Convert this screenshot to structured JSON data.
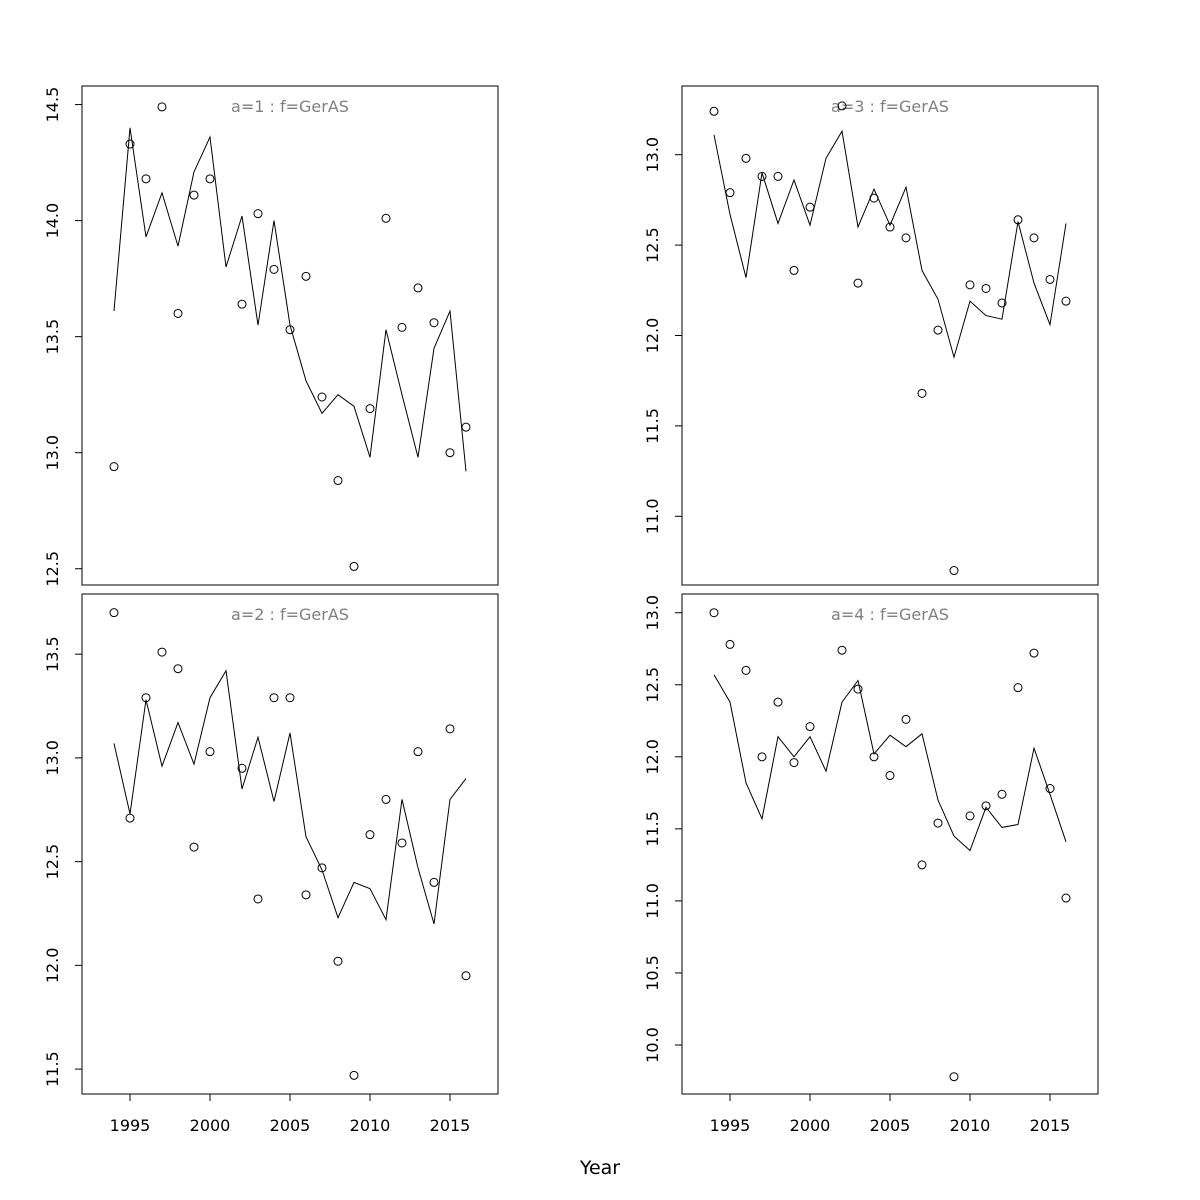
{
  "figure": {
    "xlabel": "Year"
  },
  "chart_data": [
    {
      "type": "scatter",
      "title": "a=1  :  f=GerAS",
      "xlabel": "Year",
      "ylabel": "",
      "xlim": [
        1992,
        2018
      ],
      "ylim": [
        12.43,
        14.58
      ],
      "yticks": [
        "12.5",
        "13.0",
        "13.5",
        "14.0",
        "14.5"
      ],
      "xticks": [],
      "series": [
        {
          "style": "points",
          "x": [
            1994,
            1995,
            1996,
            1997,
            1998,
            1999,
            2000,
            2001,
            2002,
            2003,
            2004,
            2005,
            2006,
            2007,
            2008,
            2009,
            2010,
            2011,
            2012,
            2013,
            2014,
            2015,
            2016
          ],
          "y": [
            12.94,
            14.33,
            14.18,
            14.49,
            13.6,
            14.11,
            14.18,
            null,
            13.64,
            14.03,
            13.79,
            13.53,
            13.76,
            13.24,
            12.88,
            12.51,
            13.19,
            14.01,
            13.54,
            13.71,
            13.56,
            13.0,
            13.11
          ]
        },
        {
          "style": "line",
          "x": [
            1994,
            1995,
            1996,
            1997,
            1998,
            1999,
            2000,
            2001,
            2002,
            2003,
            2004,
            2005,
            2006,
            2007,
            2008,
            2009,
            2010,
            2011,
            2012,
            2013,
            2014,
            2015,
            2016
          ],
          "y": [
            13.61,
            14.4,
            13.93,
            14.12,
            13.89,
            14.21,
            14.36,
            13.8,
            14.02,
            13.55,
            14.0,
            13.55,
            13.31,
            13.17,
            13.25,
            13.2,
            12.98,
            13.53,
            13.25,
            12.98,
            13.45,
            13.61,
            12.92
          ]
        }
      ]
    },
    {
      "type": "scatter",
      "title": "a=2  :  f=GerAS",
      "xlabel": "Year",
      "ylabel": "",
      "xlim": [
        1992,
        2018
      ],
      "ylim": [
        11.38,
        13.79
      ],
      "yticks": [
        "11.5",
        "12.0",
        "12.5",
        "13.0",
        "13.5"
      ],
      "xticks": [
        "1995",
        "2000",
        "2005",
        "2010",
        "2015"
      ],
      "series": [
        {
          "style": "points",
          "x": [
            1994,
            1995,
            1996,
            1997,
            1998,
            1999,
            2000,
            2001,
            2002,
            2003,
            2004,
            2005,
            2006,
            2007,
            2008,
            2009,
            2010,
            2011,
            2012,
            2013,
            2014,
            2015,
            2016
          ],
          "y": [
            13.7,
            12.71,
            13.29,
            13.51,
            13.43,
            12.57,
            13.03,
            null,
            12.95,
            12.32,
            13.29,
            13.29,
            12.34,
            12.47,
            12.02,
            11.47,
            12.63,
            12.8,
            12.59,
            13.03,
            12.4,
            13.14,
            11.95
          ]
        },
        {
          "style": "line",
          "x": [
            1994,
            1995,
            1996,
            1997,
            1998,
            1999,
            2000,
            2001,
            2002,
            2003,
            2004,
            2005,
            2006,
            2007,
            2008,
            2009,
            2010,
            2011,
            2012,
            2013,
            2014,
            2015,
            2016
          ],
          "y": [
            13.07,
            12.73,
            13.28,
            12.96,
            13.17,
            12.97,
            13.29,
            13.42,
            12.85,
            13.1,
            12.79,
            13.12,
            12.62,
            12.46,
            12.23,
            12.4,
            12.37,
            12.22,
            12.8,
            12.47,
            12.2,
            12.8,
            12.9
          ]
        }
      ]
    },
    {
      "type": "scatter",
      "title": "a=3  :  f=GerAS",
      "xlabel": "Year",
      "ylabel": "",
      "xlim": [
        1992,
        2018
      ],
      "ylim": [
        10.62,
        13.38
      ],
      "yticks": [
        "11.0",
        "11.5",
        "12.0",
        "12.5",
        "13.0"
      ],
      "xticks": [],
      "series": [
        {
          "style": "points",
          "x": [
            1994,
            1995,
            1996,
            1997,
            1998,
            1999,
            2000,
            2001,
            2002,
            2003,
            2004,
            2005,
            2006,
            2007,
            2008,
            2009,
            2010,
            2011,
            2012,
            2013,
            2014,
            2015,
            2016
          ],
          "y": [
            13.24,
            12.79,
            12.98,
            12.88,
            12.88,
            12.36,
            12.71,
            null,
            13.27,
            12.29,
            12.76,
            12.6,
            12.54,
            11.68,
            12.03,
            10.7,
            12.28,
            12.26,
            12.18,
            12.64,
            12.54,
            12.31,
            12.19
          ]
        },
        {
          "style": "line",
          "x": [
            1994,
            1995,
            1996,
            1997,
            1998,
            1999,
            2000,
            2001,
            2002,
            2003,
            2004,
            2005,
            2006,
            2007,
            2008,
            2009,
            2010,
            2011,
            2012,
            2013,
            2014,
            2015,
            2016
          ],
          "y": [
            13.11,
            12.67,
            12.32,
            12.9,
            12.62,
            12.86,
            12.61,
            12.98,
            13.13,
            12.6,
            12.81,
            12.61,
            12.82,
            12.36,
            12.2,
            11.88,
            12.19,
            12.11,
            12.09,
            12.63,
            12.29,
            12.06,
            12.62
          ]
        }
      ]
    },
    {
      "type": "scatter",
      "title": "a=4  :  f=GerAS",
      "xlabel": "Year",
      "ylabel": "",
      "xlim": [
        1992,
        2018
      ],
      "ylim": [
        9.66,
        13.13
      ],
      "yticks": [
        "10.0",
        "10.5",
        "11.0",
        "11.5",
        "12.0",
        "12.5",
        "13.0"
      ],
      "xticks": [
        "1995",
        "2000",
        "2005",
        "2010",
        "2015"
      ],
      "series": [
        {
          "style": "points",
          "x": [
            1994,
            1995,
            1996,
            1997,
            1998,
            1999,
            2000,
            2001,
            2002,
            2003,
            2004,
            2005,
            2006,
            2007,
            2008,
            2009,
            2010,
            2011,
            2012,
            2013,
            2014,
            2015,
            2016
          ],
          "y": [
            13.0,
            12.78,
            12.6,
            12.0,
            12.38,
            11.96,
            12.21,
            null,
            12.74,
            12.47,
            12.0,
            11.87,
            12.26,
            11.25,
            11.54,
            9.78,
            11.59,
            11.66,
            11.74,
            12.48,
            12.72,
            11.78,
            11.02
          ]
        },
        {
          "style": "line",
          "x": [
            1994,
            1995,
            1996,
            1997,
            1998,
            1999,
            2000,
            2001,
            2002,
            2003,
            2004,
            2005,
            2006,
            2007,
            2008,
            2009,
            2010,
            2011,
            2012,
            2013,
            2014,
            2015,
            2016
          ],
          "y": [
            12.57,
            12.38,
            11.82,
            11.57,
            12.14,
            12.0,
            12.14,
            11.9,
            12.38,
            12.53,
            12.02,
            12.15,
            12.07,
            12.16,
            11.7,
            11.45,
            11.35,
            11.65,
            11.51,
            11.53,
            12.06,
            11.74,
            11.41
          ]
        }
      ]
    }
  ]
}
